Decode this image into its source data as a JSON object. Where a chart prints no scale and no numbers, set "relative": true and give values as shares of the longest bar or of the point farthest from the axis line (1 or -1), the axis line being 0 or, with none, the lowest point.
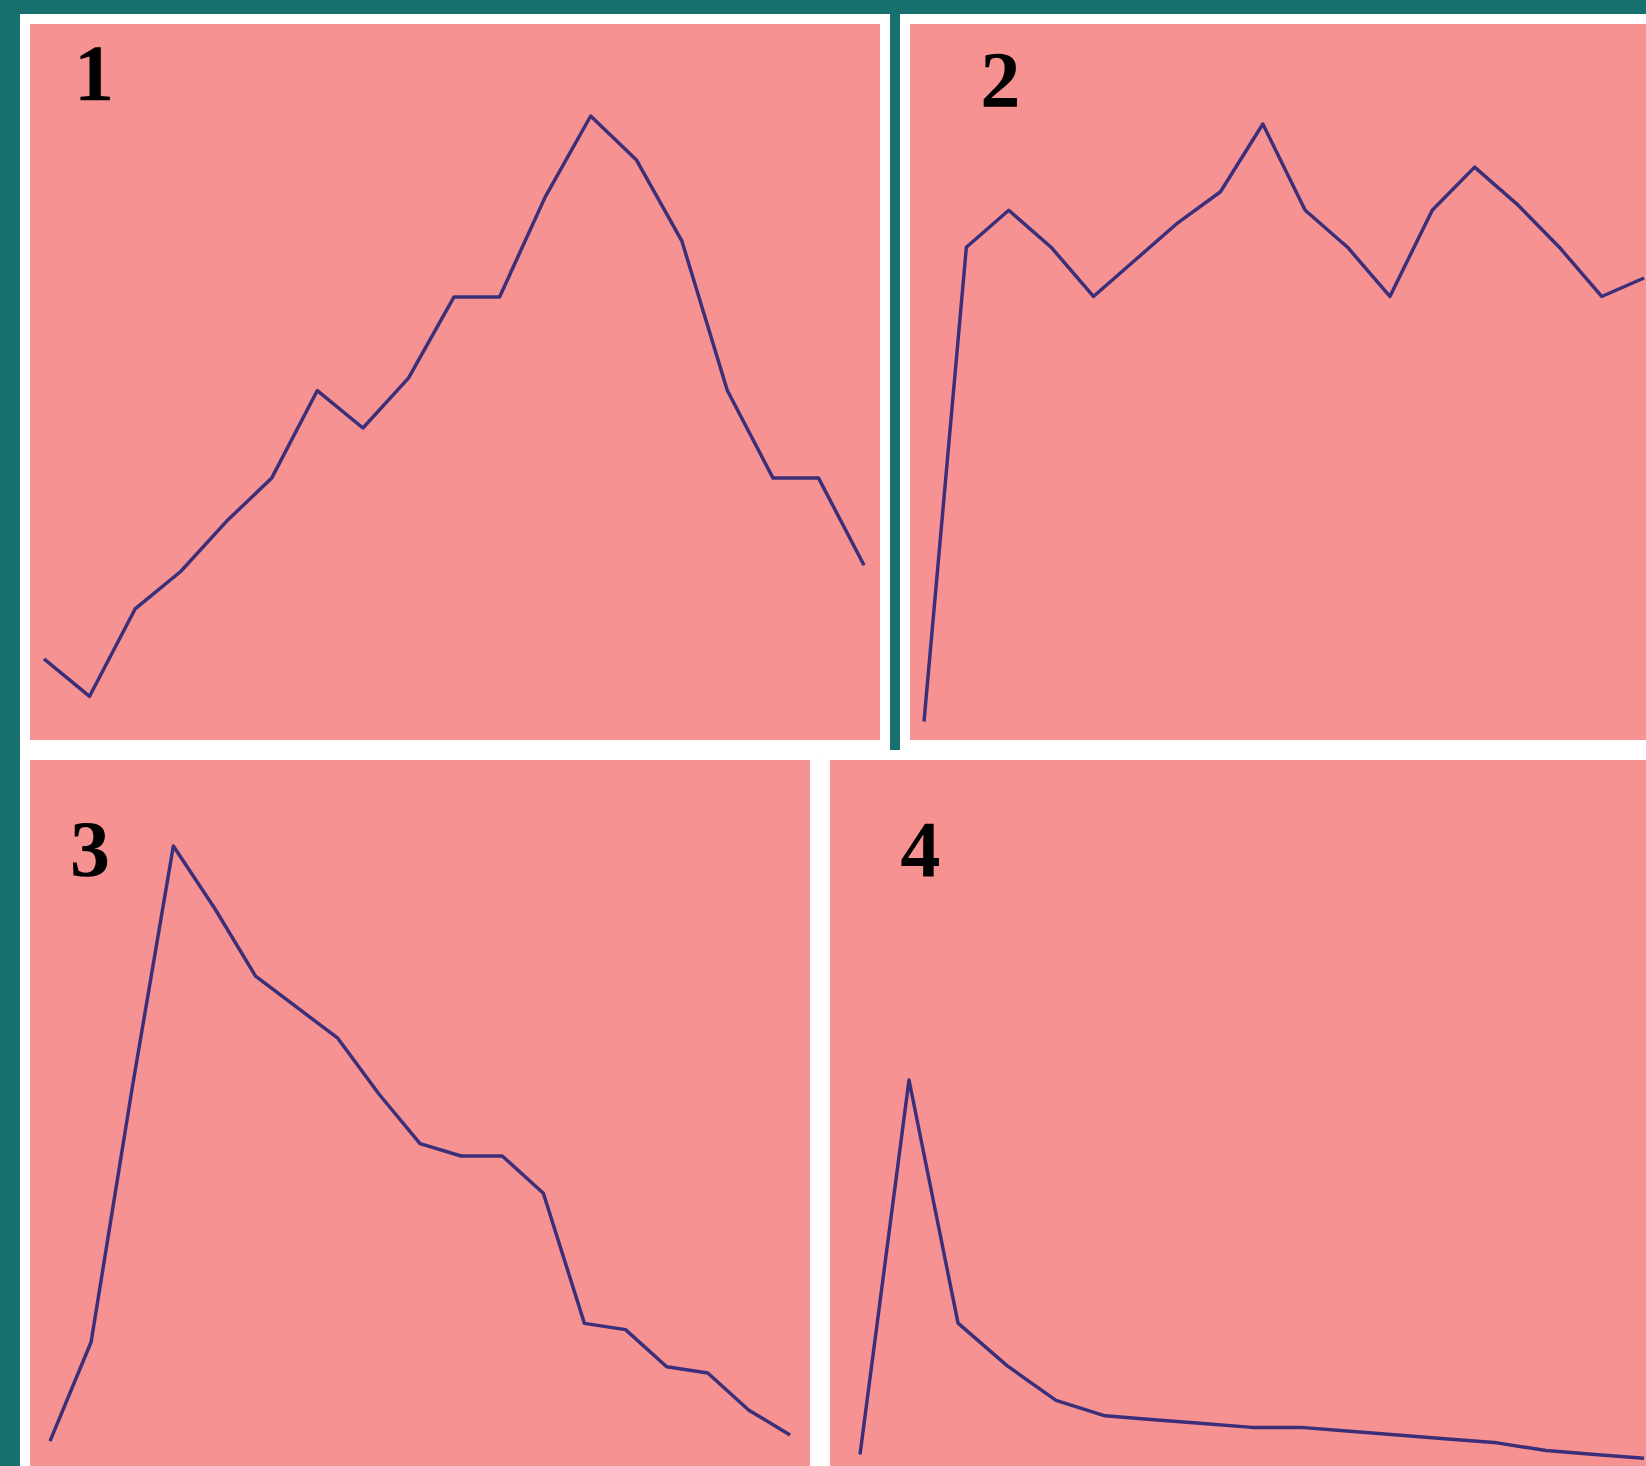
{
  "chart_data": [
    {
      "type": "line",
      "title": "1",
      "relative": true,
      "color": "#3b2f7a",
      "categories": [
        null,
        null,
        null,
        null,
        null,
        null,
        null,
        null,
        null,
        null,
        null,
        null,
        null,
        null,
        null,
        null,
        null,
        null,
        null
      ],
      "values": [
        0.13,
        0.07,
        0.21,
        0.27,
        0.35,
        0.42,
        0.56,
        0.5,
        0.58,
        0.71,
        0.71,
        0.87,
        1,
        0.93,
        0.8,
        0.56,
        0.42,
        0.42,
        0.28
      ]
    },
    {
      "type": "line",
      "title": "2",
      "relative": true,
      "color": "#3b2f7a",
      "categories": [
        null,
        null,
        null,
        null,
        null,
        null,
        null,
        null,
        null,
        null,
        null,
        null,
        null,
        null,
        null,
        null,
        null,
        null
      ],
      "values": [
        0.03,
        0.8,
        0.86,
        0.8,
        0.72,
        0.78,
        0.84,
        0.89,
        1,
        0.86,
        0.8,
        0.72,
        0.86,
        0.93,
        0.87,
        0.8,
        0.72,
        0.75
      ]
    },
    {
      "type": "line",
      "title": "3",
      "relative": true,
      "color": "#3b2f7a",
      "categories": [
        null,
        null,
        null,
        null,
        null,
        null,
        null,
        null,
        null,
        null,
        null,
        null,
        null,
        null,
        null,
        null,
        null,
        null,
        null
      ],
      "values": [
        0.04,
        0.2,
        0.61,
        1,
        0.9,
        0.79,
        0.74,
        0.69,
        0.6,
        0.52,
        0.5,
        0.5,
        0.44,
        0.23,
        0.22,
        0.16,
        0.15,
        0.09,
        0.05
      ]
    },
    {
      "type": "line",
      "title": "4",
      "relative": true,
      "color": "#3b2f7a",
      "categories": [
        null,
        null,
        null,
        null,
        null,
        null,
        null,
        null,
        null,
        null,
        null,
        null,
        null,
        null,
        null,
        null,
        null
      ],
      "values": [
        0.03,
        1,
        0.37,
        0.26,
        0.17,
        0.13,
        0.12,
        0.11,
        0.1,
        0.1,
        0.09,
        0.08,
        0.07,
        0.06,
        0.04,
        0.03,
        0.02
      ]
    }
  ]
}
